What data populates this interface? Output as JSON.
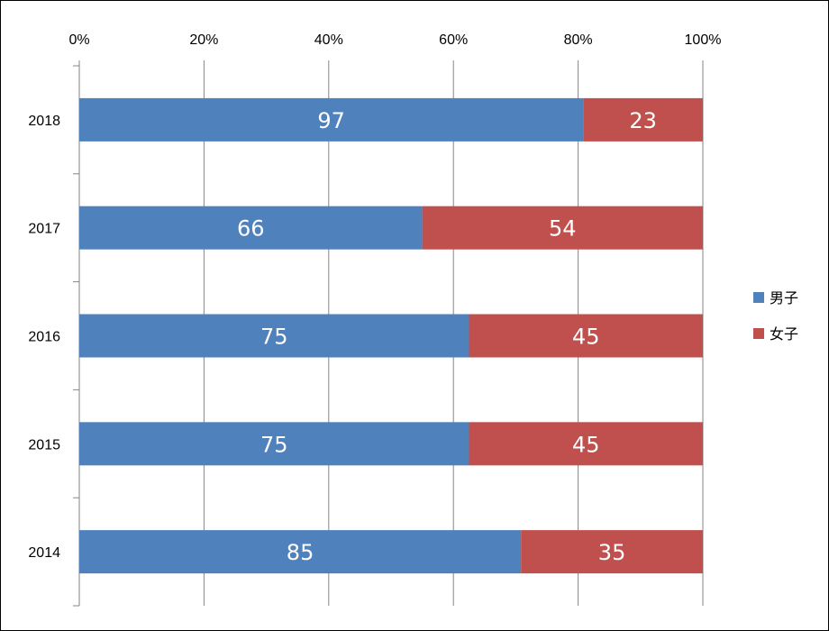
{
  "chart_data": {
    "type": "bar",
    "orientation": "horizontal",
    "stacking": "percent",
    "categories": [
      "2018",
      "2017",
      "2016",
      "2015",
      "2014"
    ],
    "series": [
      {
        "name": "男子",
        "color": "#4f81bd",
        "values": [
          97,
          66,
          75,
          75,
          85
        ]
      },
      {
        "name": "女子",
        "color": "#c0504d",
        "values": [
          23,
          54,
          45,
          45,
          35
        ]
      }
    ],
    "x_ticks": [
      "0%",
      "20%",
      "40%",
      "60%",
      "80%",
      "100%"
    ],
    "xlim": [
      0,
      100
    ],
    "x_axis_position": "top",
    "grid": true,
    "legend": "right",
    "data_labels": true
  }
}
